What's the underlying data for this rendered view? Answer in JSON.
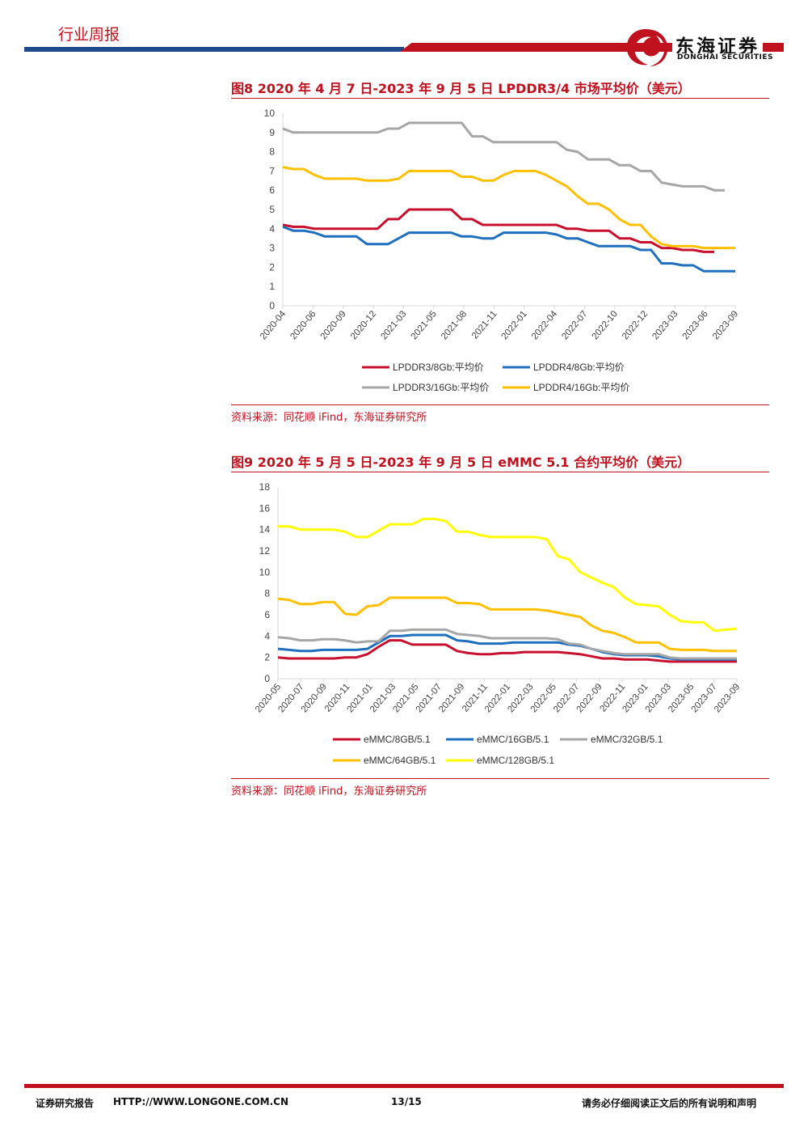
{
  "header": {
    "title": "行业周报",
    "brand_cn": "东海证券",
    "brand_en": "DONGHAI SECURITIES"
  },
  "figure8": {
    "title": "图8  2020 年 4 月 7 日-2023 年 9 月 5 日 LPDDR3/4 市场平均价（美元）",
    "source": "资料来源：同花顺 iFind，东海证券研究所"
  },
  "figure9": {
    "title": "图9  2020 年 5 月 5 日-2023 年 9 月 5 日 eMMC 5.1 合约平均价（美元）",
    "source": "资料来源：同花顺 iFind，东海证券研究所"
  },
  "footer": {
    "left": "证券研究报告",
    "url": "HTTP://WWW.LONGONE.COM.CN",
    "page": "13/15",
    "right": "请务必仔细阅读正文后的所有说明和声明"
  },
  "chart_data": [
    {
      "type": "line",
      "ylim": [
        0,
        10
      ],
      "yticks": [
        0,
        1,
        2,
        3,
        4,
        5,
        6,
        7,
        8,
        9,
        10
      ],
      "x_ticks": [
        "2020-04",
        "2020-06",
        "2020-09",
        "2020-12",
        "2021-03",
        "2021-05",
        "2021-08",
        "2021-11",
        "2022-01",
        "2022-04",
        "2022-07",
        "2022-10",
        "2022-12",
        "2023-03",
        "2023-06",
        "2023-09"
      ],
      "legend_position": "bottom",
      "series": [
        {
          "name": "LPDDR3/8Gb:平均价",
          "color": "#c8102e",
          "values": [
            4.2,
            4.1,
            4.1,
            4.0,
            4.0,
            4.0,
            4.0,
            4.0,
            4.0,
            4.0,
            4.5,
            4.5,
            5.0,
            5.0,
            5.0,
            5.0,
            5.0,
            4.5,
            4.5,
            4.2,
            4.2,
            4.2,
            4.2,
            4.2,
            4.2,
            4.2,
            4.2,
            4.0,
            4.0,
            3.9,
            3.9,
            3.9,
            3.5,
            3.5,
            3.3,
            3.3,
            3.0,
            3.0,
            2.9,
            2.9,
            2.8,
            2.8,
            null,
            null
          ]
        },
        {
          "name": "LPDDR4/8Gb:平均价",
          "color": "#1f6fbf",
          "values": [
            4.1,
            3.9,
            3.9,
            3.8,
            3.6,
            3.6,
            3.6,
            3.6,
            3.2,
            3.2,
            3.2,
            3.5,
            3.8,
            3.8,
            3.8,
            3.8,
            3.8,
            3.6,
            3.6,
            3.5,
            3.5,
            3.8,
            3.8,
            3.8,
            3.8,
            3.8,
            3.7,
            3.5,
            3.5,
            3.3,
            3.1,
            3.1,
            3.1,
            3.1,
            2.9,
            2.9,
            2.2,
            2.2,
            2.1,
            2.1,
            1.8,
            1.8,
            1.8,
            1.8
          ]
        },
        {
          "name": "LPDDR3/16Gb:平均价",
          "color": "#a6a6a6",
          "values": [
            9.2,
            9.0,
            9.0,
            9.0,
            9.0,
            9.0,
            9.0,
            9.0,
            9.0,
            9.0,
            9.2,
            9.2,
            9.5,
            9.5,
            9.5,
            9.5,
            9.5,
            9.5,
            8.8,
            8.8,
            8.5,
            8.5,
            8.5,
            8.5,
            8.5,
            8.5,
            8.5,
            8.1,
            8.0,
            7.6,
            7.6,
            7.6,
            7.3,
            7.3,
            7.0,
            7.0,
            6.4,
            6.3,
            6.2,
            6.2,
            6.2,
            6.0,
            6.0,
            null
          ]
        },
        {
          "name": "LPDDR4/16Gb:平均价",
          "color": "#ffc000",
          "values": [
            7.2,
            7.1,
            7.1,
            6.8,
            6.6,
            6.6,
            6.6,
            6.6,
            6.5,
            6.5,
            6.5,
            6.6,
            7.0,
            7.0,
            7.0,
            7.0,
            7.0,
            6.7,
            6.7,
            6.5,
            6.5,
            6.8,
            7.0,
            7.0,
            7.0,
            6.8,
            6.5,
            6.2,
            5.7,
            5.3,
            5.3,
            5.0,
            4.5,
            4.2,
            4.2,
            3.6,
            3.2,
            3.1,
            3.1,
            3.1,
            3.0,
            3.0,
            3.0,
            3.0
          ]
        }
      ]
    },
    {
      "type": "line",
      "ylim": [
        0,
        18
      ],
      "yticks": [
        0,
        2,
        4,
        6,
        8,
        10,
        12,
        14,
        16,
        18
      ],
      "x_ticks": [
        "2020-05",
        "2020-07",
        "2020-09",
        "2020-11",
        "2021-01",
        "2021-03",
        "2021-05",
        "2021-07",
        "2021-09",
        "2021-11",
        "2022-01",
        "2022-03",
        "2022-05",
        "2022-07",
        "2022-09",
        "2022-11",
        "2023-01",
        "2023-03",
        "2023-05",
        "2023-07",
        "2023-09"
      ],
      "legend_position": "bottom",
      "series": [
        {
          "name": "eMMC/8GB/5.1",
          "color": "#c8102e",
          "values": [
            2.0,
            1.9,
            1.9,
            1.9,
            1.9,
            1.9,
            2.0,
            2.0,
            2.3,
            3.0,
            3.6,
            3.6,
            3.2,
            3.2,
            3.2,
            3.2,
            2.6,
            2.4,
            2.3,
            2.3,
            2.4,
            2.4,
            2.5,
            2.5,
            2.5,
            2.5,
            2.4,
            2.3,
            2.1,
            1.9,
            1.9,
            1.8,
            1.8,
            1.8,
            1.7,
            1.6,
            1.6,
            1.6,
            1.6,
            1.6,
            1.6,
            1.6
          ]
        },
        {
          "name": "eMMC/16GB/5.1",
          "color": "#1f6fbf",
          "values": [
            2.8,
            2.7,
            2.6,
            2.6,
            2.7,
            2.7,
            2.7,
            2.7,
            2.8,
            3.4,
            4.0,
            4.0,
            4.1,
            4.1,
            4.1,
            4.1,
            3.6,
            3.5,
            3.3,
            3.3,
            3.3,
            3.4,
            3.4,
            3.4,
            3.4,
            3.4,
            3.2,
            3.1,
            2.8,
            2.5,
            2.3,
            2.2,
            2.2,
            2.2,
            2.1,
            1.9,
            1.8,
            1.8,
            1.8,
            1.8,
            1.8,
            1.8
          ]
        },
        {
          "name": "eMMC/32GB/5.1",
          "color": "#a6a6a6",
          "values": [
            3.9,
            3.8,
            3.6,
            3.6,
            3.7,
            3.7,
            3.6,
            3.4,
            3.5,
            3.5,
            4.5,
            4.5,
            4.6,
            4.6,
            4.6,
            4.6,
            4.2,
            4.1,
            4.0,
            3.8,
            3.8,
            3.8,
            3.8,
            3.8,
            3.8,
            3.7,
            3.3,
            3.2,
            2.8,
            2.6,
            2.4,
            2.3,
            2.3,
            2.3,
            2.3,
            2.0,
            1.9,
            1.9,
            1.9,
            1.9,
            1.9,
            1.9
          ]
        },
        {
          "name": "eMMC/64GB/5.1",
          "color": "#ffc000",
          "values": [
            7.5,
            7.4,
            7.0,
            7.0,
            7.2,
            7.2,
            6.1,
            6.0,
            6.8,
            6.9,
            7.6,
            7.6,
            7.6,
            7.6,
            7.6,
            7.6,
            7.1,
            7.1,
            7.0,
            6.5,
            6.5,
            6.5,
            6.5,
            6.5,
            6.4,
            6.2,
            6.0,
            5.8,
            5.0,
            4.5,
            4.3,
            3.9,
            3.4,
            3.4,
            3.4,
            2.8,
            2.7,
            2.7,
            2.7,
            2.6,
            2.6,
            2.6
          ]
        },
        {
          "name": "eMMC/128GB/5.1",
          "color": "#ffff00",
          "values": [
            14.3,
            14.3,
            14.0,
            14.0,
            14.0,
            14.0,
            13.8,
            13.3,
            13.3,
            13.9,
            14.5,
            14.5,
            14.5,
            15.0,
            15.0,
            14.8,
            13.8,
            13.8,
            13.5,
            13.3,
            13.3,
            13.3,
            13.3,
            13.3,
            13.1,
            11.5,
            11.2,
            10.0,
            9.5,
            9.0,
            8.6,
            7.6,
            7.0,
            6.9,
            6.8,
            6.0,
            5.4,
            5.3,
            5.3,
            4.5,
            4.6,
            4.7
          ]
        }
      ]
    }
  ]
}
